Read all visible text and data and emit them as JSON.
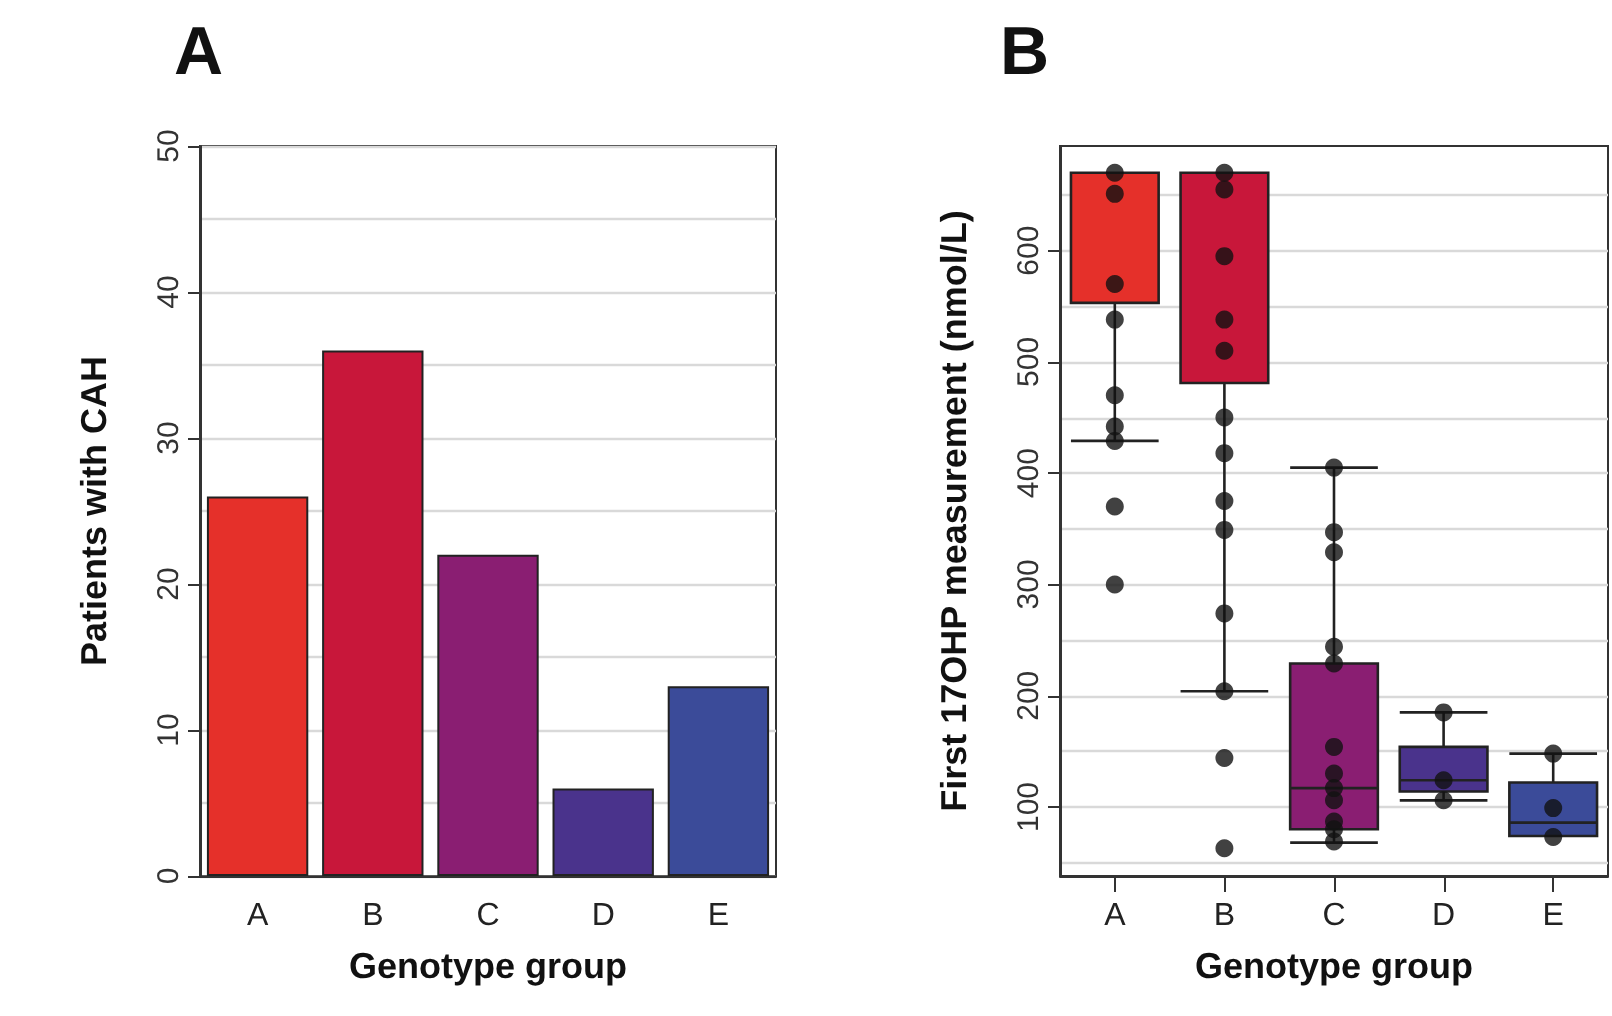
{
  "chart_data": [
    {
      "type": "bar",
      "title": "A",
      "xlabel": "Genotype group",
      "ylabel": "Patients with CAH",
      "categories": [
        "A",
        "B",
        "C",
        "D",
        "E"
      ],
      "values": [
        26,
        36,
        22,
        6,
        13
      ],
      "colors": [
        "#e5302a",
        "#c8173a",
        "#8a1e72",
        "#4a338c",
        "#3b4b99"
      ],
      "ylim": [
        0,
        50
      ],
      "yticks": [
        0,
        {
          "value": 5,
          "label": null
        },
        10,
        {
          "value": 15,
          "label": null
        },
        20,
        {
          "value": 25,
          "label": null
        },
        30,
        {
          "value": 35,
          "label": null
        },
        40,
        {
          "value": 45,
          "label": null
        },
        50
      ],
      "grid": "y"
    },
    {
      "type": "box",
      "title": "B",
      "xlabel": "Genotype group",
      "ylabel": "First 17OHP measurement (nmol/L)",
      "categories": [
        "A",
        "B",
        "C",
        "D",
        "E"
      ],
      "ylim": [
        38,
        694
      ],
      "yticks": [
        {
          "value": 50,
          "label": null
        },
        100,
        {
          "value": 150,
          "label": null
        },
        200,
        {
          "value": 250,
          "label": null
        },
        300,
        {
          "value": 350,
          "label": null
        },
        400,
        {
          "value": 450,
          "label": null
        },
        500,
        {
          "value": 550,
          "label": null
        },
        600,
        {
          "value": 650,
          "label": null
        }
      ],
      "grid": "y",
      "series": [
        {
          "type": "box",
          "colors": [
            "#e5302a",
            "#c8173a",
            "#8a1e72",
            "#4a338c",
            "#3b4b99"
          ],
          "boxes": [
            {
              "low": 429,
              "q1": 553,
              "median": 670,
              "q3": 670,
              "high": 670
            },
            {
              "low": 204,
              "q1": 481,
              "median": 670,
              "q3": 670,
              "high": 670
            },
            {
              "low": 68,
              "q1": 80,
              "median": 117,
              "q3": 229,
              "high": 405
            },
            {
              "low": 106,
              "q1": 114,
              "median": 124,
              "q3": 154,
              "high": 185
            },
            {
              "low": 74,
              "q1": 74,
              "median": 86,
              "q3": 122,
              "high": 148
            }
          ]
        },
        {
          "type": "scatter",
          "color": "#111111",
          "marker": "circle",
          "x": [
            "A",
            "A",
            "A",
            "A",
            "A",
            "A",
            "A",
            "A",
            "A",
            "B",
            "B",
            "B",
            "B",
            "B",
            "B",
            "B",
            "B",
            "B",
            "B",
            "B",
            "B",
            "B",
            "B",
            "C",
            "C",
            "C",
            "C",
            "C",
            "C",
            "C",
            "C",
            "C",
            "C",
            "C",
            "C",
            "D",
            "D",
            "D",
            "E",
            "E",
            "E"
          ],
          "values": [
            670,
            651,
            570,
            538,
            470,
            442,
            429,
            370,
            300,
            670,
            655,
            595,
            538,
            510,
            450,
            418,
            375,
            349,
            274,
            null,
            204,
            144,
            63,
            405,
            347,
            329,
            244,
            229,
            154,
            130,
            117,
            106,
            87,
            80,
            69,
            185,
            124,
            106,
            148,
            99,
            73
          ]
        }
      ]
    }
  ]
}
